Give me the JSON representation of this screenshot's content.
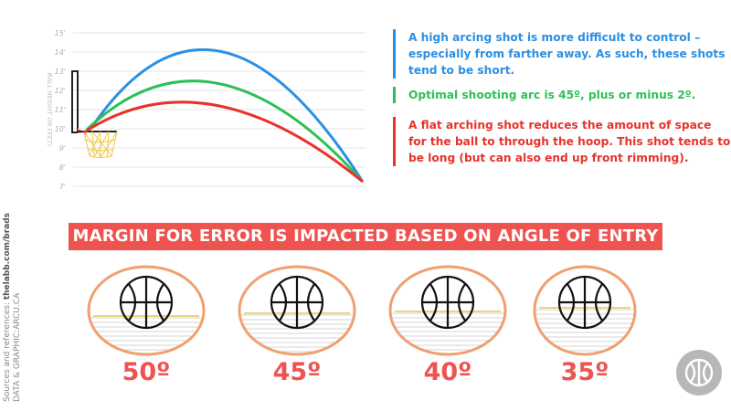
{
  "chart": {
    "y_ticks": [
      "15'",
      "14'",
      "13'",
      "12'",
      "11'",
      "10'",
      "9'",
      "8'",
      "7'"
    ],
    "ylabel": "BALL HEIGHT (IN FEET)"
  },
  "notes": {
    "blue": "A high arcing shot is more difficult to control – especially from farther away. As such, these shots tend to be short.",
    "green": "Optimal shooting arc is 45º, plus or minus 2º.",
    "red": "A flat arching shot reduces the amount of space for the ball to through the hoop. This shot tends to be long (but can also end up front rimming)."
  },
  "banner": "MARGIN FOR ERROR IS IMPACTED BASED ON ANGLE OF ENTRY",
  "angles": [
    "50º",
    "45º",
    "40º",
    "35º"
  ],
  "source": {
    "prefix": "Sources and references:",
    "site": "thelabb.com/brads",
    "credit": "DATA & GRAPHIC:ARCU.CA"
  },
  "colors": {
    "high_arc": "#2b8fe3",
    "optimal_arc": "#2fbf57",
    "flat_arc": "#e8322a",
    "banner": "#ef5350",
    "ellipse_stroke": "#f0a070",
    "rim_line": "#e8c64a"
  },
  "icons": {
    "logo": "basketball-logo-icon"
  }
}
